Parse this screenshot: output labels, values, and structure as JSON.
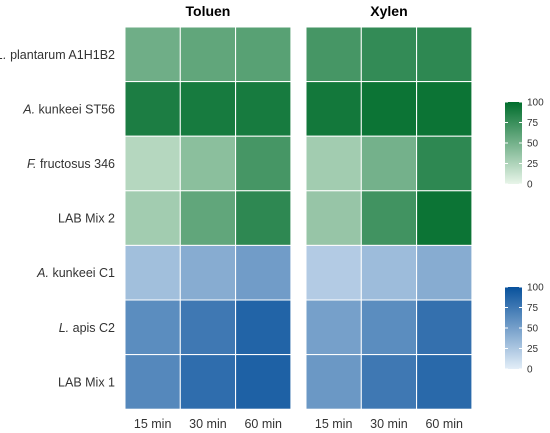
{
  "chart_data": {
    "type": "heatmap",
    "panels": [
      {
        "title": "Toluen",
        "values": [
          [
            52,
            58,
            62
          ],
          [
            88,
            90,
            90
          ],
          [
            22,
            40,
            70
          ],
          [
            30,
            58,
            80
          ],
          [
            30,
            42,
            52
          ],
          [
            62,
            75,
            88
          ],
          [
            65,
            82,
            90
          ]
        ]
      },
      {
        "title": "Xylen",
        "values": [
          [
            70,
            78,
            80
          ],
          [
            92,
            95,
            95
          ],
          [
            30,
            50,
            80
          ],
          [
            35,
            72,
            95
          ],
          [
            22,
            32,
            42
          ],
          [
            50,
            62,
            80
          ],
          [
            55,
            75,
            85
          ]
        ]
      }
    ],
    "rows": [
      {
        "prefix": "L.",
        "suffix": " plantarum A1H1B2",
        "group": "green"
      },
      {
        "prefix": "A.",
        "suffix": " kunkeei ST56",
        "group": "green"
      },
      {
        "prefix": "F.",
        "suffix": " fructosus 346",
        "group": "green"
      },
      {
        "prefix": "",
        "suffix": "LAB Mix 2",
        "group": "green"
      },
      {
        "prefix": "A.",
        "suffix": " kunkeei C1",
        "group": "blue"
      },
      {
        "prefix": "L.",
        "suffix": " apis C2",
        "group": "blue"
      },
      {
        "prefix": "",
        "suffix": "LAB Mix 1",
        "group": "blue"
      }
    ],
    "columns": [
      "15 min",
      "30 min",
      "60 min"
    ],
    "scales": {
      "green": {
        "low": "#e8f5e9",
        "high": "#006d2c",
        "range": [
          0,
          100
        ],
        "ticks": [
          0,
          25,
          50,
          75,
          100
        ]
      },
      "blue": {
        "low": "#e3eef8",
        "high": "#08519c",
        "range": [
          0,
          100
        ],
        "ticks": [
          0,
          25,
          50,
          75,
          100
        ]
      }
    },
    "legends": "right"
  }
}
